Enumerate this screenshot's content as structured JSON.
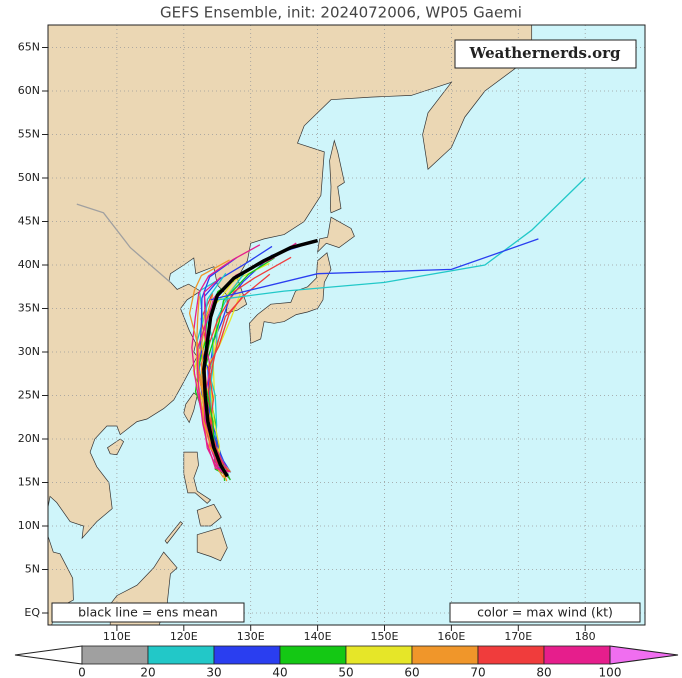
{
  "title": "GEFS Ensemble, init: 2024072006, WP05 Gaemi",
  "watermark": "Weathernerds.org",
  "lat_labels": [
    "65N",
    "60N",
    "55N",
    "50N",
    "45N",
    "40N",
    "35N",
    "30N",
    "25N",
    "20N",
    "15N",
    "10N",
    "5N",
    "EQ"
  ],
  "lon_labels": [
    "110E",
    "120E",
    "130E",
    "140E",
    "150E",
    "160E",
    "170E",
    "180"
  ],
  "mean_note": "black line = ens mean",
  "color_note": "color = max wind (kt)",
  "colorbar": {
    "labels": [
      "0",
      "20",
      "30",
      "40",
      "50",
      "60",
      "70",
      "80",
      "100"
    ],
    "colors": [
      "#a0a0a0",
      "#22c8c8",
      "#2a3ef0",
      "#14c814",
      "#e6e628",
      "#f0962a",
      "#f03c3c",
      "#e61e8c"
    ],
    "low_color": "#ffffff",
    "high_color": "#f06ef0"
  }
}
